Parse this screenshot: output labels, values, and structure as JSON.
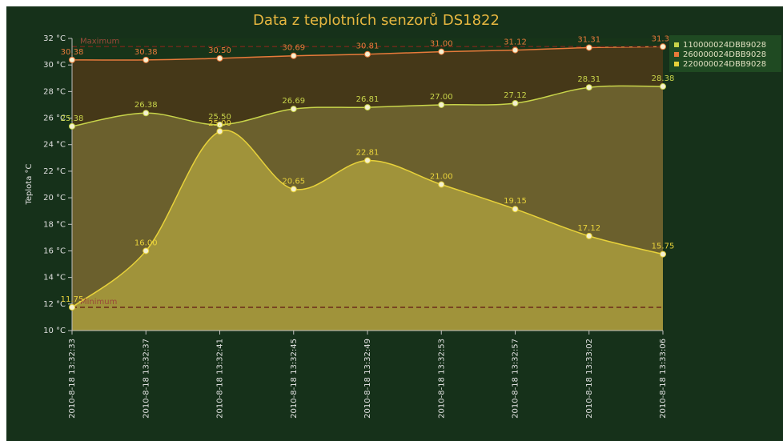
{
  "chart_data": {
    "type": "area",
    "title": "Data z teplotních senzorů DS1822",
    "y_axis_label": "Teplota °C",
    "categories": [
      "2010-8-18 13:32:33",
      "2010-8-18 13:32:37",
      "2010-8-18 13:32:41",
      "2010-8-18 13:32:45",
      "2010-8-18 13:32:49",
      "2010-8-18 13:32:53",
      "2010-8-18 13:32:57",
      "2010-8-18 13:33:02",
      "2010-8-18 13:33:06"
    ],
    "series": [
      {
        "name": "260000024DBB9028",
        "color": "#e87a3a",
        "fill": "#4a3818",
        "values": [
          30.38,
          30.38,
          30.5,
          30.69,
          30.81,
          31.0,
          31.12,
          31.31,
          31.38
        ],
        "value_labels": [
          "30.38",
          "30.38",
          "30.50",
          "30.69",
          "30.81",
          "31.00",
          "31.12",
          "31.31",
          "31.38"
        ]
      },
      {
        "name": "110000024DBB9028",
        "color": "#c8d44a",
        "fill": "#6f6530",
        "values": [
          25.38,
          26.38,
          25.5,
          26.69,
          26.81,
          27.0,
          27.12,
          28.31,
          28.38
        ],
        "value_labels": [
          "25.38",
          "26.38",
          "25.50",
          "26.69",
          "26.81",
          "27.00",
          "27.12",
          "28.31",
          "28.38"
        ]
      },
      {
        "name": "220000024DBB9028",
        "color": "#e8d23a",
        "fill": "#a6993c",
        "values": [
          11.75,
          16.0,
          25.0,
          20.65,
          22.81,
          21.0,
          19.15,
          17.12,
          15.75
        ],
        "value_labels": [
          "11.75",
          "16.00",
          "25.00",
          "20.65",
          "22.81",
          "21.00",
          "19.15",
          "17.12",
          "15.75"
        ]
      }
    ],
    "legend_order": [
      1,
      0,
      2
    ],
    "plot_lines": [
      {
        "value": 31.38,
        "label": "Maximum"
      },
      {
        "value": 11.75,
        "label": "Minimum"
      }
    ],
    "ylim": [
      10,
      32
    ],
    "yticks": [
      {
        "value": 10,
        "label": "10 °C"
      },
      {
        "value": 12,
        "label": "12 °C"
      },
      {
        "value": 14,
        "label": "14 °C"
      },
      {
        "value": 16,
        "label": "16 °C"
      },
      {
        "value": 18,
        "label": "18 °C"
      },
      {
        "value": 20,
        "label": "20 °C"
      },
      {
        "value": 22,
        "label": "22 °C"
      },
      {
        "value": 24,
        "label": "24 °C"
      },
      {
        "value": 26,
        "label": "26 °C"
      },
      {
        "value": 28,
        "label": "28 °C"
      },
      {
        "value": 30,
        "label": "30 °C"
      },
      {
        "value": 32,
        "label": "32 °C"
      }
    ],
    "legend": "top-right"
  }
}
